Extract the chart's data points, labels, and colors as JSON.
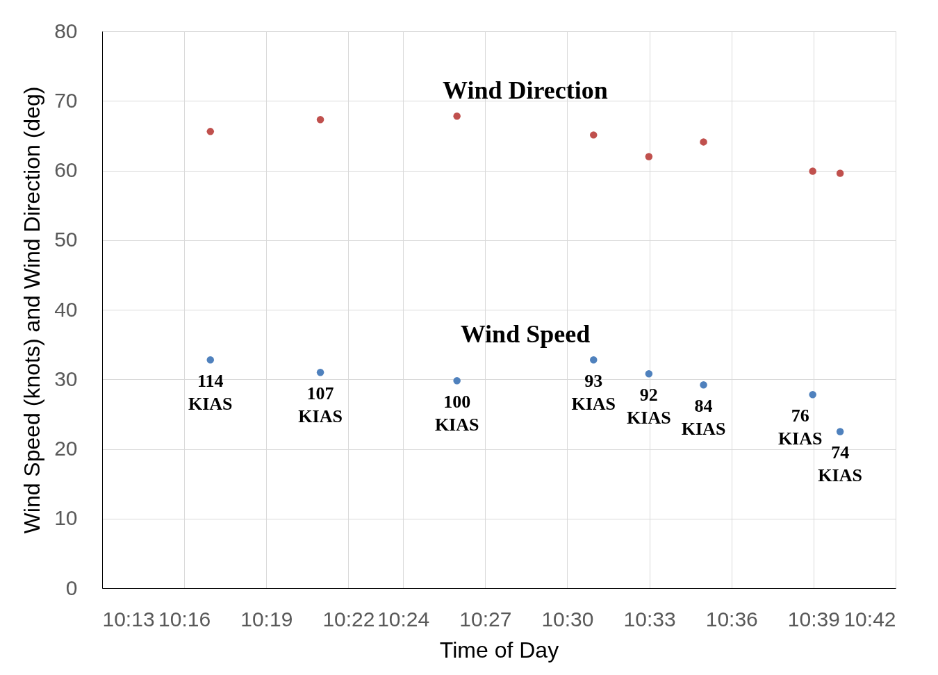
{
  "chart_data": {
    "type": "scatter",
    "xlabel": "Time of Day",
    "ylabel": "Wind Speed (knots) and Wind Direction (deg)",
    "x": [
      10.2826,
      10.3496,
      10.4328,
      10.516,
      10.5497,
      10.583,
      10.6495,
      10.6662
    ],
    "series": [
      {
        "name": "Wind Direction",
        "color": "#c0504d",
        "values": [
          65.6,
          67.3,
          67.8,
          65.1,
          62.0,
          64.1,
          59.9,
          59.6
        ]
      },
      {
        "name": "Wind Speed",
        "color": "#4f81bd",
        "values": [
          32.8,
          31.0,
          29.8,
          32.8,
          30.8,
          29.2,
          27.8,
          22.5
        ]
      }
    ],
    "annotations": [
      {
        "text": "114 KIAS",
        "x": 10.2826,
        "y": 32.8
      },
      {
        "text": "107 KIAS",
        "x": 10.3496,
        "y": 31.0
      },
      {
        "text": "100 KIAS",
        "x": 10.4328,
        "y": 29.8
      },
      {
        "text": "93 KIAS",
        "x": 10.516,
        "y": 32.8
      },
      {
        "text": "92 KIAS",
        "x": 10.5497,
        "y": 30.8
      },
      {
        "text": "84 KIAS",
        "x": 10.583,
        "y": 29.2
      },
      {
        "text": "76 KIAS",
        "x": 10.6495,
        "y": 27.8
      },
      {
        "text": "74 KIAS",
        "x": 10.6662,
        "y": 22.5
      }
    ],
    "xlim": [
      10.21667,
      10.7
    ],
    "xticks": [
      {
        "value": 10.21667,
        "label": "10:13"
      },
      {
        "value": 10.26667,
        "label": "10:16"
      },
      {
        "value": 10.31667,
        "label": "10:19"
      },
      {
        "value": 10.36667,
        "label": "10:22"
      },
      {
        "value": 10.4,
        "label": "10:24"
      },
      {
        "value": 10.45,
        "label": "10:27"
      },
      {
        "value": 10.5,
        "label": "10:30"
      },
      {
        "value": 10.55,
        "label": "10:33"
      },
      {
        "value": 10.6,
        "label": "10:36"
      },
      {
        "value": 10.65,
        "label": "10:39"
      },
      {
        "value": 10.7,
        "label": "10:42"
      }
    ],
    "ylim": [
      0,
      80
    ],
    "yticks": [
      0,
      10,
      20,
      30,
      40,
      50,
      60,
      70,
      80
    ],
    "grid": true,
    "marker": "circle"
  }
}
